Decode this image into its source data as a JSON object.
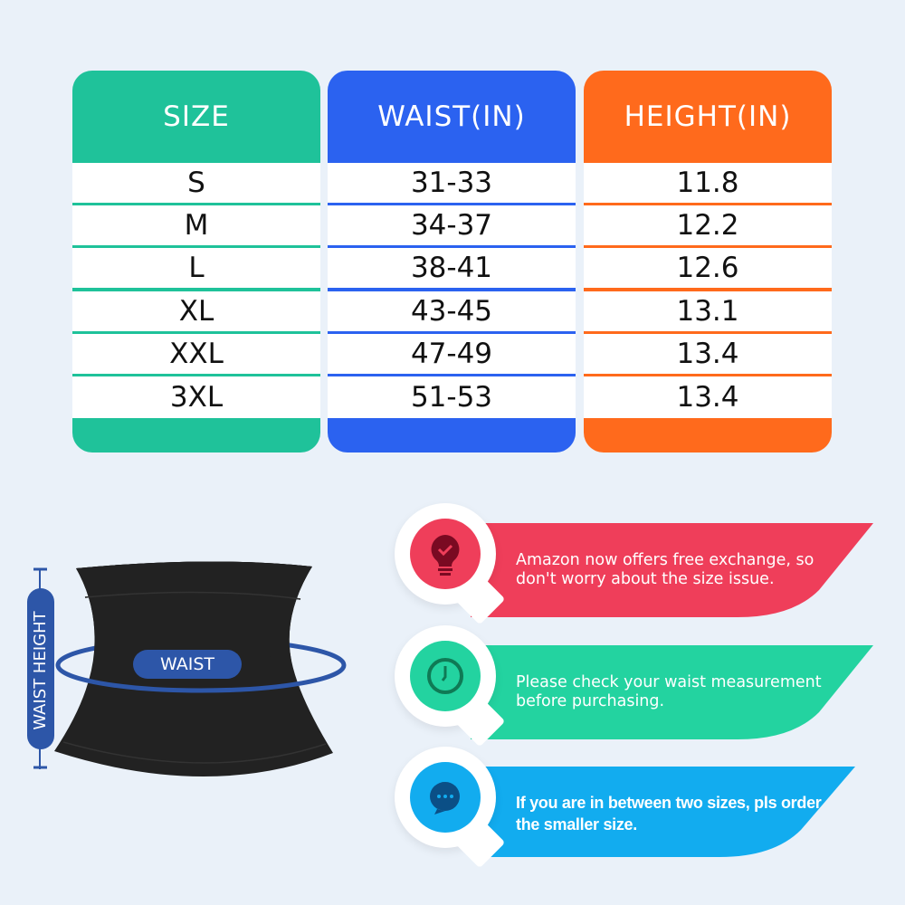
{
  "size_table": {
    "columns": [
      {
        "header": "SIZE",
        "color": "#1fc29a",
        "values": [
          "S",
          "M",
          "L",
          "XL",
          "XXL",
          "3XL"
        ]
      },
      {
        "header": "WAIST(IN)",
        "color": "#2b62f0",
        "values": [
          "31-33",
          "34-37",
          "38-41",
          "43-45",
          "47-49",
          "51-53"
        ]
      },
      {
        "header": "HEIGHT(IN)",
        "color": "#ff6a1c",
        "values": [
          "11.8",
          "12.2",
          "12.6",
          "13.1",
          "13.4",
          "13.4"
        ]
      }
    ]
  },
  "product": {
    "waist_label": "WAIST",
    "waist_height_label": "WAIST HEIGHT",
    "accent": "#2d56a8"
  },
  "tips": [
    {
      "icon": "lightbulb-check-icon",
      "text": "Amazon now offers free exchange, so don't worry about the size issue.",
      "color": "#ef3e5a",
      "icon_color": "#7a0a22"
    },
    {
      "icon": "clock-icon",
      "text": "Please check your waist measurement before purchasing.",
      "color": "#23d3a0",
      "icon_color": "#0f7a55"
    },
    {
      "icon": "chat-bubble-icon",
      "text": "If you are in between two sizes, pls order the smaller size.",
      "color": "#12acef",
      "icon_color": "#0b4f86"
    }
  ]
}
